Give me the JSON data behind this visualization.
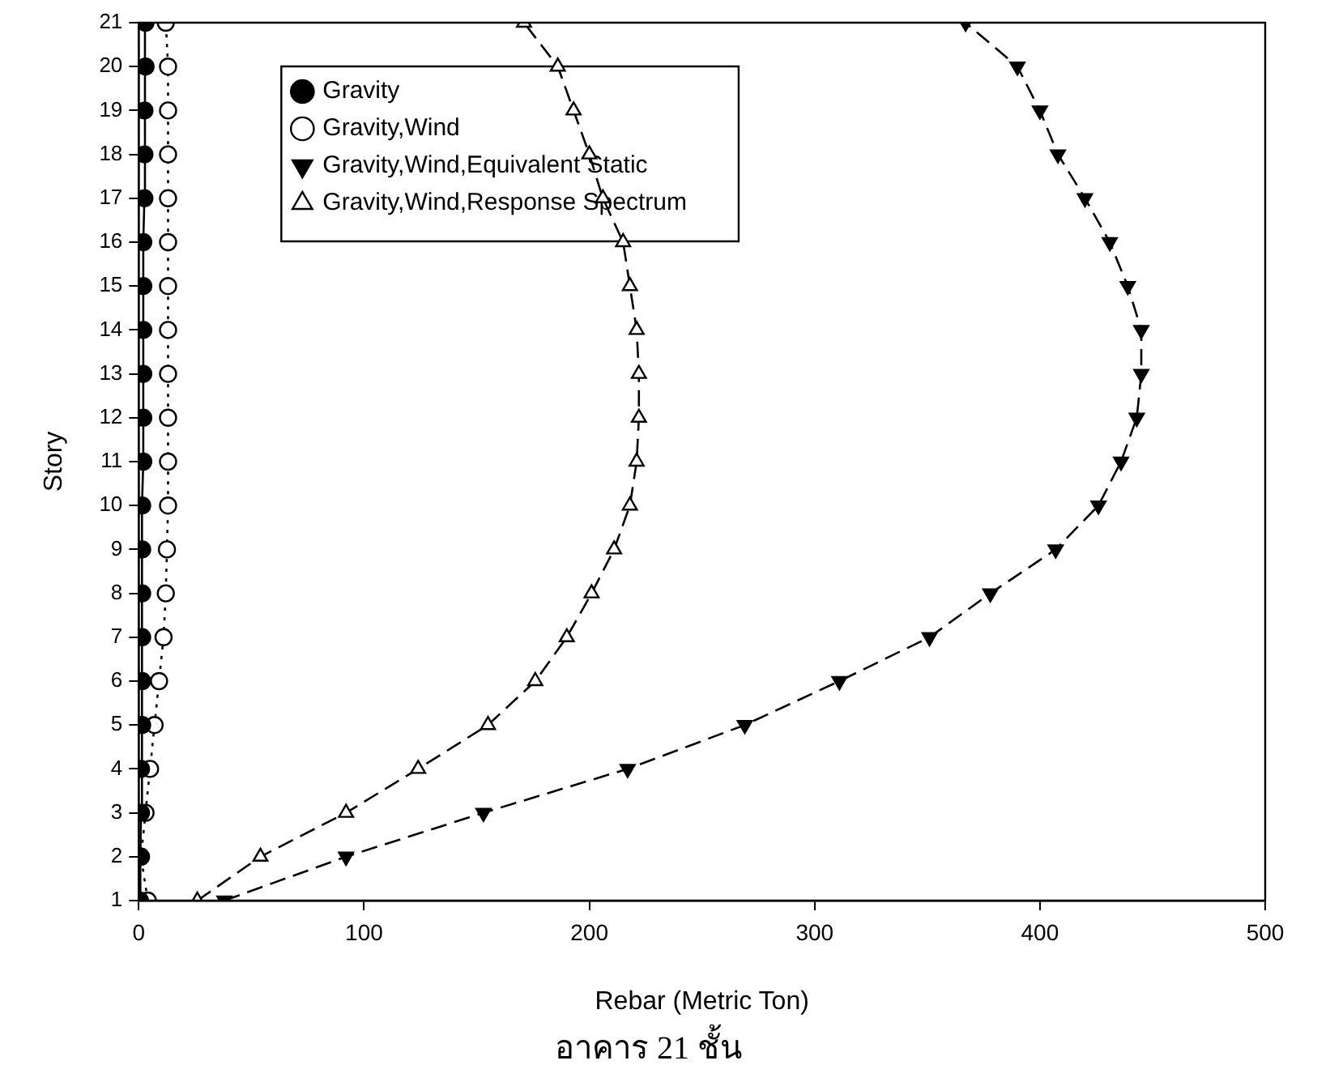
{
  "chart_data": {
    "type": "line",
    "title": "อาคาร 21 ชั้น",
    "xlabel": "Rebar (Metric Ton)",
    "ylabel": "Story",
    "xlim": [
      0,
      500
    ],
    "xticks": [
      0,
      100,
      200,
      300,
      400,
      500
    ],
    "ylim": [
      1,
      21
    ],
    "yticks": [
      1,
      2,
      3,
      4,
      5,
      6,
      7,
      8,
      9,
      10,
      11,
      12,
      13,
      14,
      15,
      16,
      17,
      18,
      19,
      20,
      21
    ],
    "grid": false,
    "legend": "top left",
    "series": [
      {
        "name": "Gravity",
        "color": "#000000",
        "marker": "circle",
        "line_style": "solid",
        "x": [
          0.5,
          0.7,
          1,
          1,
          1.5,
          1.5,
          1.5,
          1.5,
          1.5,
          1.5,
          2,
          2,
          2,
          2,
          2,
          2,
          2.5,
          2.5,
          2.5,
          3,
          3
        ],
        "values": [
          1,
          2,
          3,
          4,
          5,
          6,
          7,
          8,
          9,
          10,
          11,
          12,
          13,
          14,
          15,
          16,
          17,
          18,
          19,
          20,
          21
        ]
      },
      {
        "name": "Gravity,Wind",
        "color": "#000000",
        "marker": "circle",
        "line_style": "dotted",
        "x": [
          4,
          1,
          3,
          5,
          7,
          9,
          11,
          12,
          12.5,
          13,
          13,
          13,
          13,
          13,
          13,
          13,
          13,
          13,
          13,
          13,
          12
        ],
        "values": [
          1,
          2,
          3,
          4,
          5,
          6,
          7,
          8,
          9,
          10,
          11,
          12,
          13,
          14,
          15,
          16,
          17,
          18,
          19,
          20,
          21
        ]
      },
      {
        "name": "Gravity,Wind,Equivalent Static",
        "color": "#000000",
        "marker": "triangle",
        "line_style": "dashed",
        "x": [
          38,
          92,
          153,
          217,
          269,
          311,
          351,
          378,
          407,
          426,
          436,
          443,
          445,
          445,
          439,
          431,
          420,
          408,
          400,
          390,
          367
        ],
        "values": [
          1,
          2,
          3,
          4,
          5,
          6,
          7,
          8,
          9,
          10,
          11,
          12,
          13,
          14,
          15,
          16,
          17,
          18,
          19,
          20,
          21
        ]
      },
      {
        "name": "Gravity,Wind,Response Spectrum",
        "color": "#000000",
        "marker": "triangle",
        "line_style": "dashed",
        "x": [
          26,
          54,
          92,
          124,
          155,
          176,
          190,
          201,
          211,
          218,
          221,
          222,
          222,
          221,
          218,
          215,
          206,
          200,
          193,
          186,
          171
        ],
        "values": [
          1,
          2,
          3,
          4,
          5,
          6,
          7,
          8,
          9,
          10,
          11,
          12,
          13,
          14,
          15,
          16,
          17,
          18,
          19,
          20,
          21
        ]
      }
    ]
  }
}
